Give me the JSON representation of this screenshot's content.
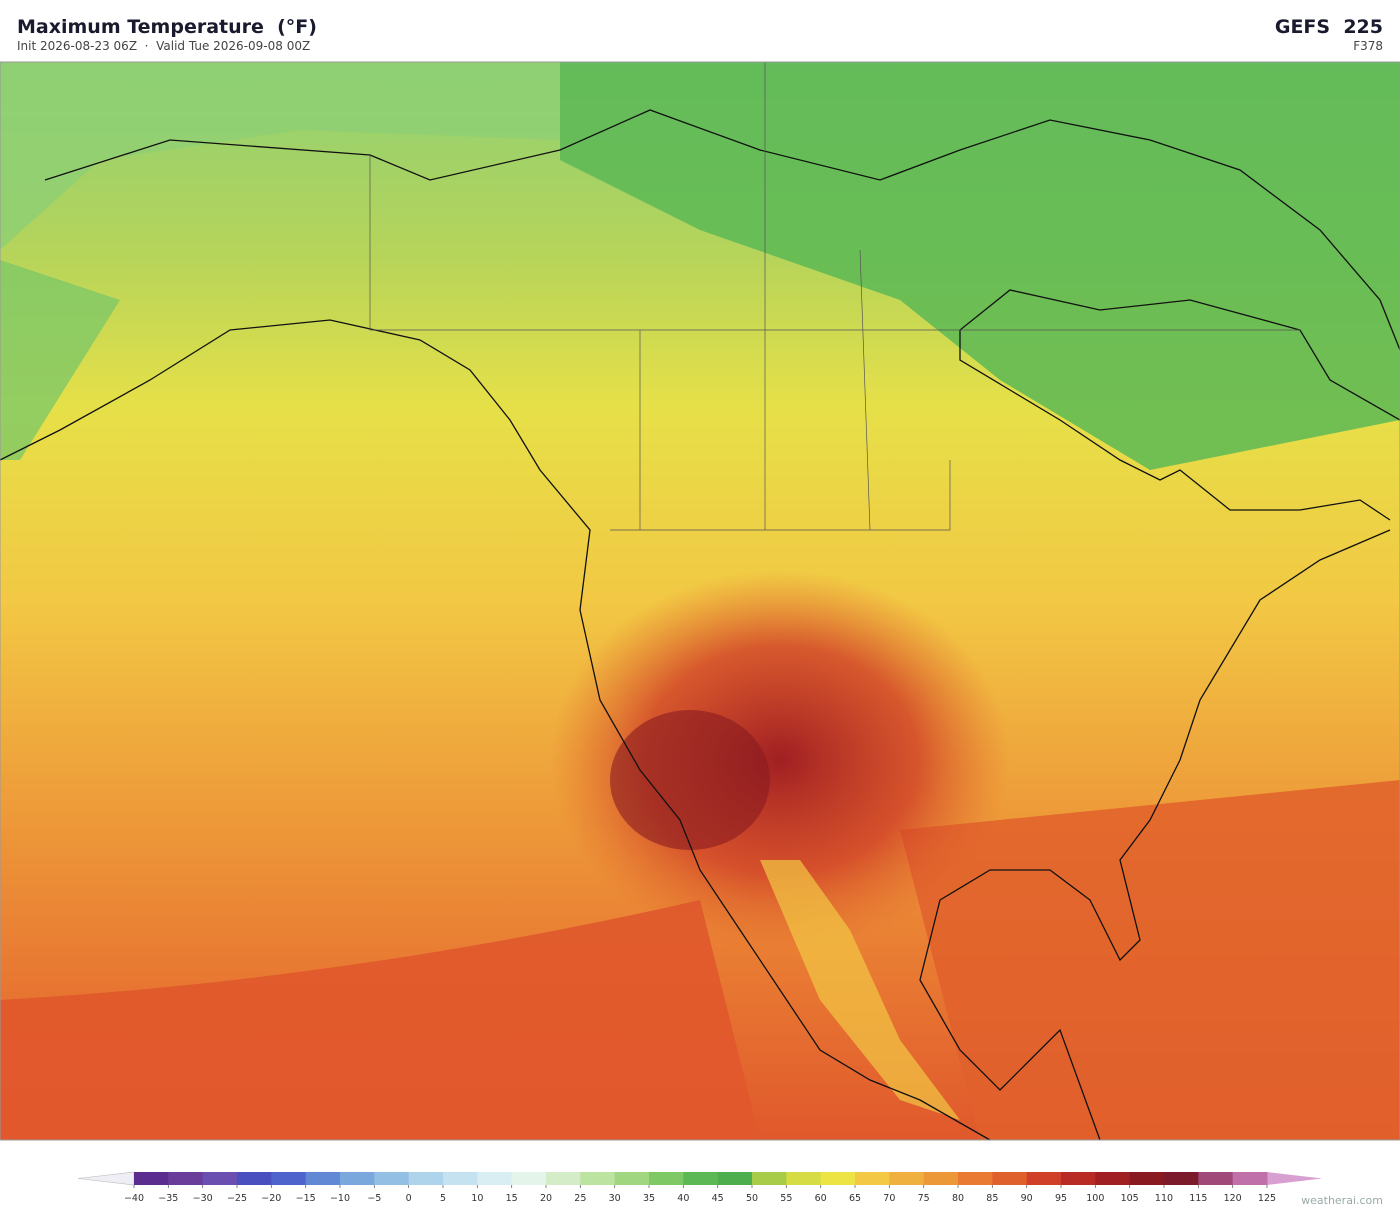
{
  "header": {
    "title": "Maximum Temperature  (°F)",
    "subtitle": "Init 2026-08-23 06Z  ·  Valid Tue 2026-09-08 00Z",
    "model": "GEFS  225",
    "forecast_hour": "F378"
  },
  "colorbar": {
    "ticks": [
      {
        "value": -40,
        "label": "−40"
      },
      {
        "value": -35,
        "label": "−35"
      },
      {
        "value": -30,
        "label": "−30"
      },
      {
        "value": -25,
        "label": "−25"
      },
      {
        "value": -20,
        "label": "−20"
      },
      {
        "value": -15,
        "label": "−15"
      },
      {
        "value": -10,
        "label": "−10"
      },
      {
        "value": -5,
        "label": "−5"
      },
      0,
      5,
      10,
      15,
      20,
      25,
      30,
      35,
      40,
      45,
      50,
      55,
      60,
      65,
      70,
      75,
      80,
      85,
      90,
      95,
      100,
      105,
      110,
      115,
      120,
      125
    ],
    "colors": [
      "#5b2d8e",
      "#6a3d9a",
      "#6a4fb0",
      "#4a4fc0",
      "#4e63cc",
      "#6088d4",
      "#7aa8dc",
      "#94bfe4",
      "#aed4ec",
      "#c4e2f0",
      "#d8eef2",
      "#e4f4ea",
      "#d4ecc8",
      "#bde3a0",
      "#9fd67f",
      "#7fc866",
      "#5cb855",
      "#4cae4c",
      "#a8cc48",
      "#d6dc44",
      "#ece444",
      "#f2c844",
      "#f0b040",
      "#ec9838",
      "#e87a32",
      "#e0602c",
      "#d04028",
      "#b82a24",
      "#a01f22",
      "#881a20",
      "#7a1a2a",
      "#a04878",
      "#c070a8"
    ],
    "under_color": "#eeeef4",
    "over_color": "#d8a0d0"
  },
  "credit": "weatherai.com"
}
